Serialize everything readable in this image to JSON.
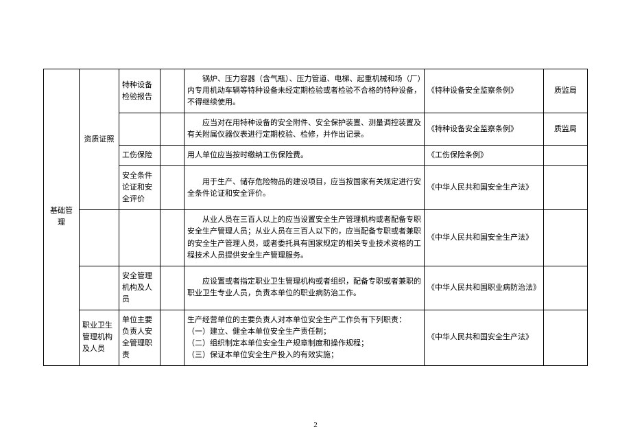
{
  "border_color": "#000000",
  "background": "#ffffff",
  "text_color": "#000000",
  "font_size": 11,
  "page_number": "2",
  "cells": {
    "c1_r1": "基础管理",
    "c2_r1": "资质证照",
    "c2_r2": "职业卫生管理机构及人员",
    "c3_r1": "特种设备检验报告",
    "c3_r3": "工伤保险",
    "c3_r4": "安全条件论证和安全评价",
    "c3_r6": "安全管理机构及人员",
    "c3_r7": "单位主要负责人安全管理职责",
    "c5_r1": "　　锅炉、压力容器（含气瓶）、压力管道、电梯、起重机械和场（厂）内专用机动车辆等特种设备未经定期检验或者检验不合格的特种设备，不得继续使用。",
    "c5_r2": "　　应当对在用特种设备的安全附件、安全保护装置、测量调控装置及有关附属仪器仪表进行定期校验、检修，并作出记录。",
    "c5_r3": "用人单位应当按时缴纳工伤保险费。",
    "c5_r4": "　　用于生产、储存危险物品的建设项目，应当按国家有关规定进行安全条件论证和安全评价。",
    "c5_r5": "　　从业人员在三百人以上的应当设置安全生产管理机构或者配备专职安全生产管理人员；从业人员在三百人以下的，应当配备专职或者兼职的安全生产管理人员，或者委托具有国家规定的相关专业技术资格的工程技术人员提供安全生产管理服务。",
    "c5_r6": "　　应设置或者指定职业卫生管理机构或者组织，配备专职或者兼职的职业卫生专业人员，负责本单位的职业病防治工作。",
    "c5_r7": "生产经营单位的主要负责人对本单位安全生产工作负有下列职责：\n（一）建立、健全本单位安全生产责任制；\n（二）组织制定本单位安全生产规章制度和操作规程；\n（三）保证本单位安全生产投入的有效实施；",
    "c6_r1": "《特种设备安全监察条例》",
    "c6_r2": "《特种设备安全监察条例》",
    "c6_r3": "《工伤保险条例》",
    "c6_r4": "《中华人民共和国安全生产法》",
    "c6_r5": "《中华人民共和国安全生产法》",
    "c6_r6": "《中华人民共和国职业病防治法》",
    "c6_r7": "《中华人民共和国安全生产法》",
    "c7_r1": "质监局",
    "c7_r2": "质监局"
  }
}
